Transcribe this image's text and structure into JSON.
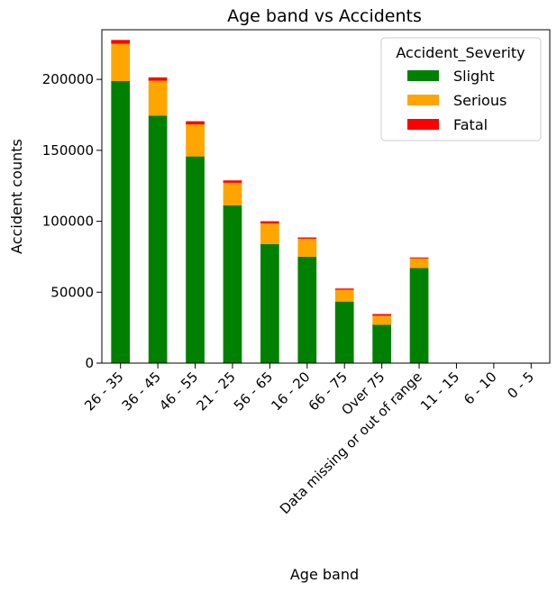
{
  "chart_data": {
    "type": "bar",
    "stacked": true,
    "title": "Age band vs Accidents",
    "xlabel": "Age band",
    "ylabel": "Accident counts",
    "ylim": [
      0,
      235000
    ],
    "yticks": [
      0,
      50000,
      100000,
      150000,
      200000
    ],
    "categories": [
      "26 - 35",
      "36 - 45",
      "46 - 55",
      "21 - 25",
      "56 - 65",
      "16 - 20",
      "66 - 75",
      "Over 75",
      "Data missing or out of range",
      "11 - 15",
      "6 - 10",
      "0 - 5"
    ],
    "series": [
      {
        "name": "Slight",
        "color": "#008000",
        "values": [
          198800,
          174500,
          145700,
          111200,
          84000,
          75000,
          43400,
          27100,
          67000,
          0,
          0,
          0
        ]
      },
      {
        "name": "Serious",
        "color": "#FFA500",
        "values": [
          26300,
          24600,
          22600,
          15900,
          14500,
          12700,
          8300,
          6300,
          6800,
          0,
          0,
          0
        ]
      },
      {
        "name": "Fatal",
        "color": "#FF0000",
        "values": [
          2700,
          2300,
          2200,
          1700,
          1500,
          900,
          900,
          1200,
          700,
          0,
          0,
          0
        ]
      }
    ],
    "legend": {
      "title": "Accident_Severity",
      "position": "top-right"
    },
    "grid": false
  }
}
